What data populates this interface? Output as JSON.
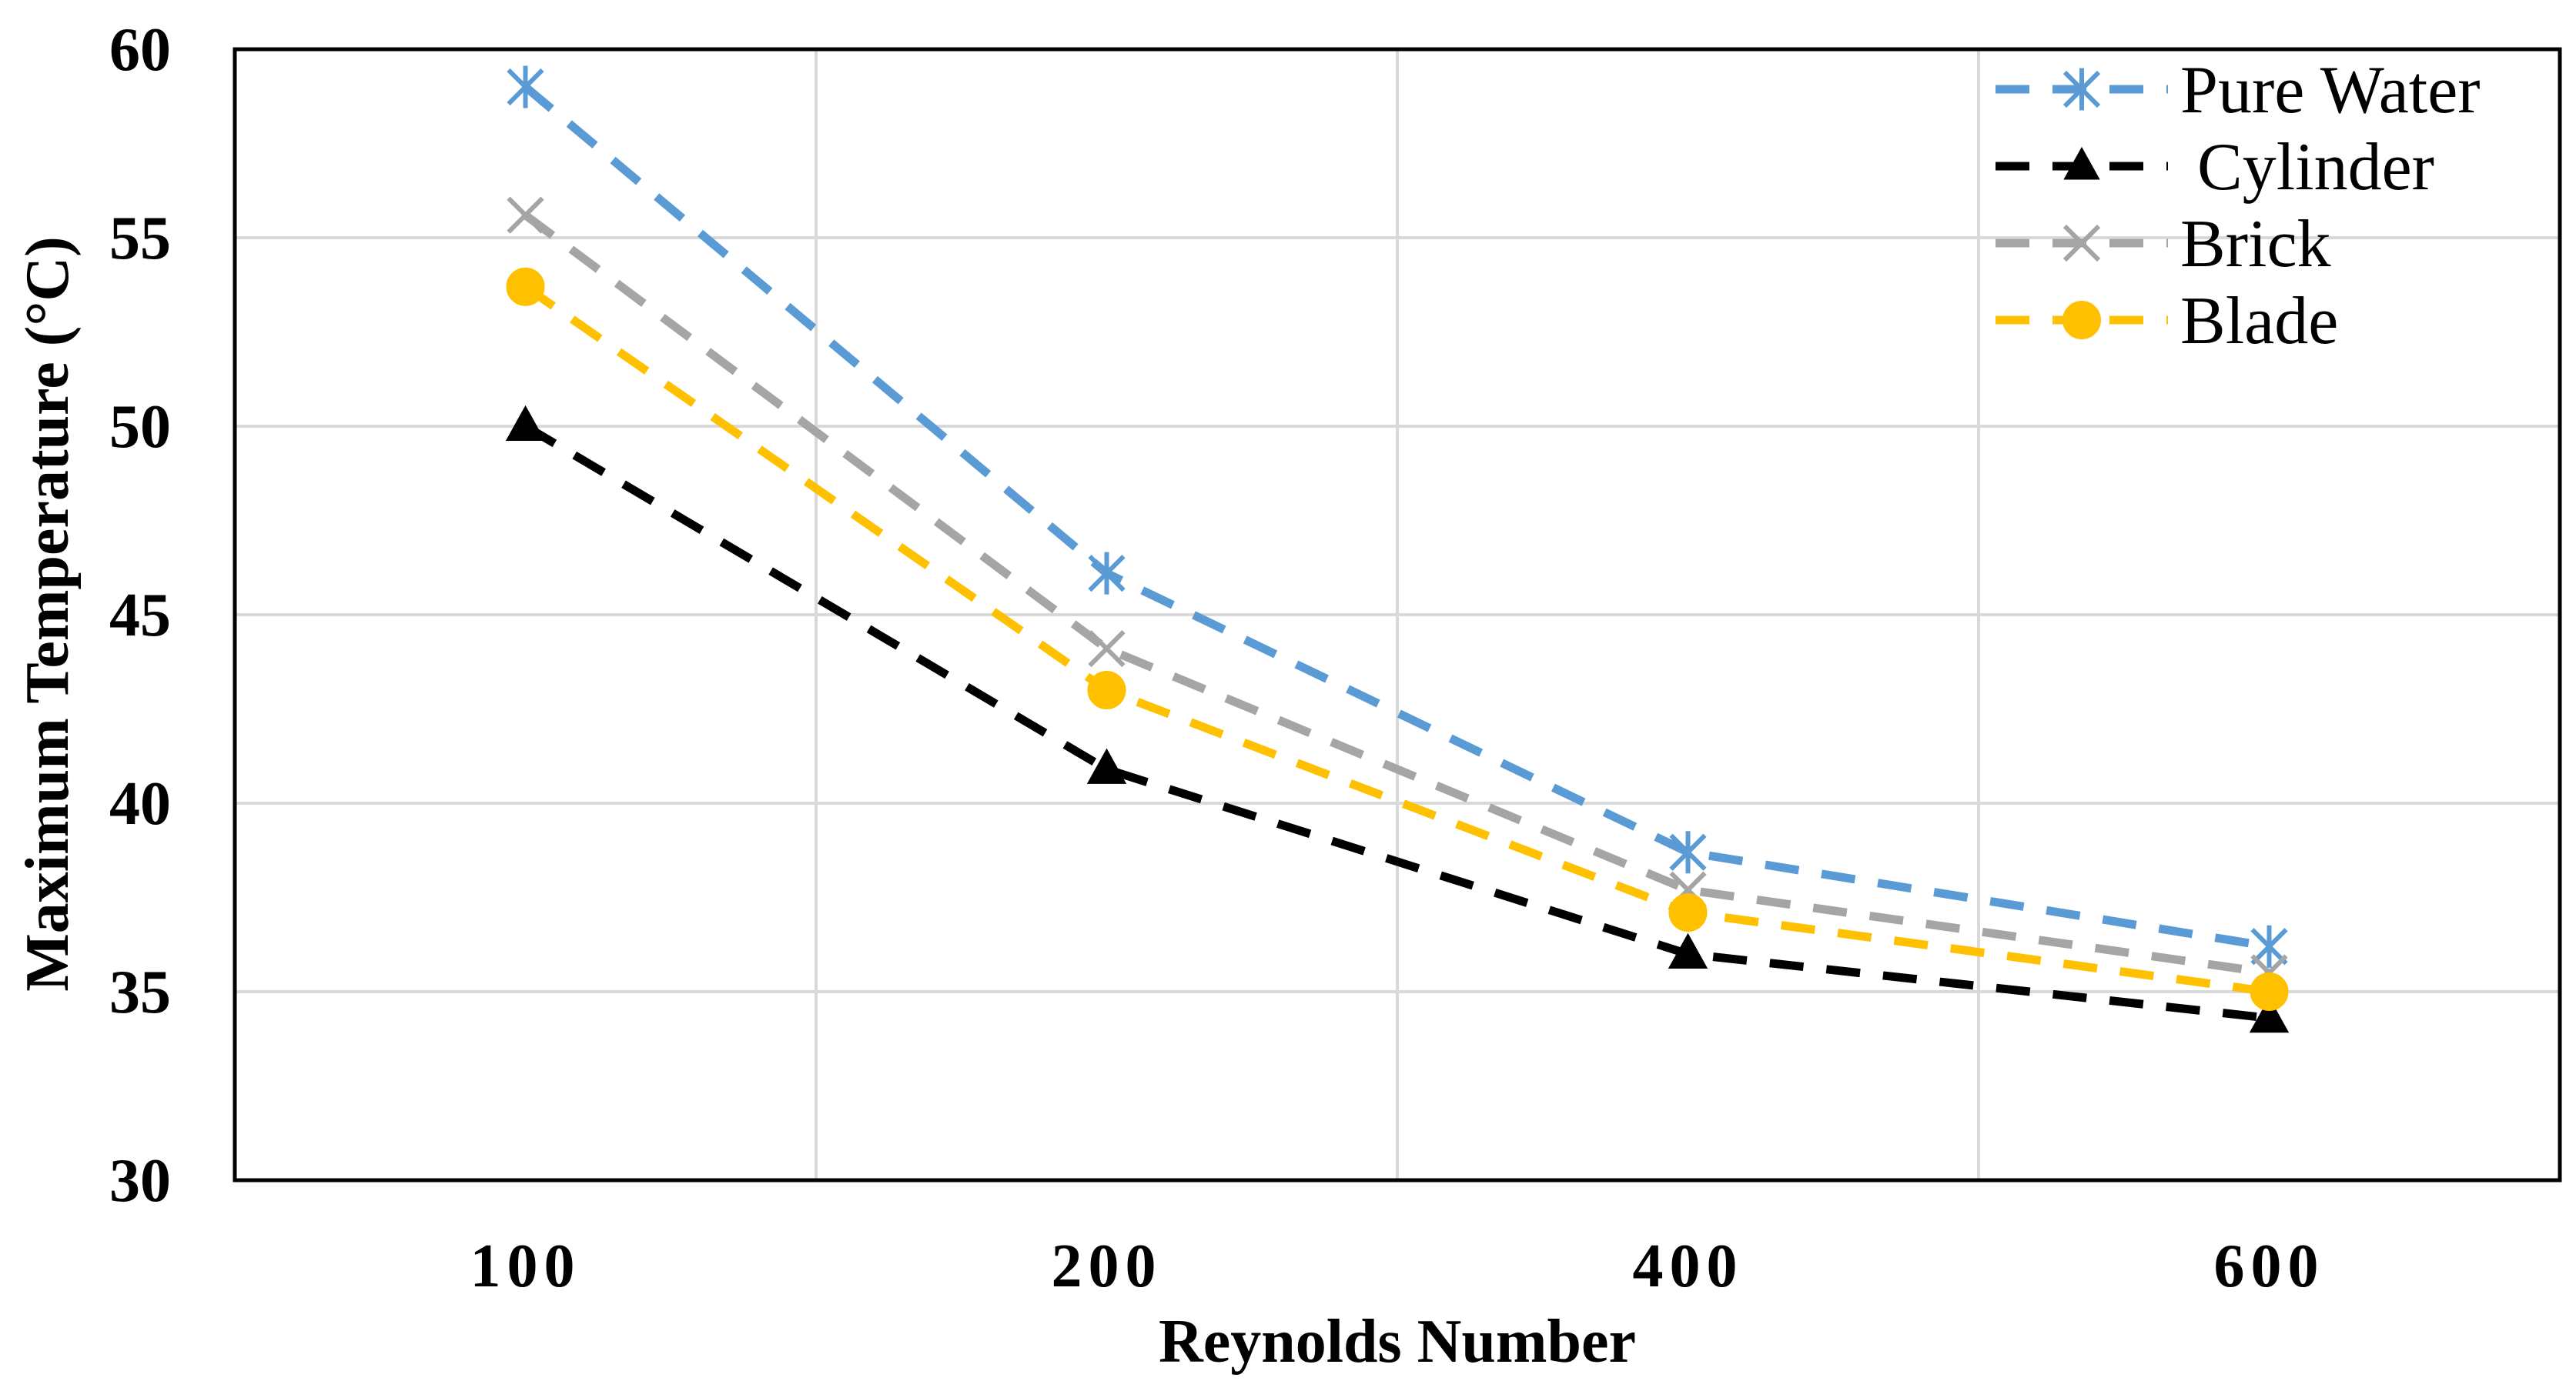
{
  "chart_data": {
    "type": "line",
    "title": "",
    "xlabel": "Reynolds Number",
    "ylabel": "Maximum Temperature (°C)",
    "categories": [
      "100",
      "200",
      "400",
      "600"
    ],
    "ylim": [
      30,
      60
    ],
    "yticks": [
      "30",
      "35",
      "40",
      "45",
      "50",
      "55",
      "60"
    ],
    "grid": true,
    "legend_position": "top-right",
    "series": [
      {
        "name": "Pure Water",
        "color": "#5B9BD5",
        "marker": "asterisk",
        "values": [
          59.0,
          46.1,
          38.7,
          36.2
        ]
      },
      {
        "name": " Cylinder",
        "color": "#000000",
        "marker": "triangle",
        "values": [
          50.0,
          40.9,
          36.0,
          34.3
        ]
      },
      {
        "name": "Brick",
        "color": "#A5A5A5",
        "marker": "x",
        "values": [
          55.6,
          44.1,
          37.7,
          35.5
        ]
      },
      {
        "name": "Blade",
        "color": "#FFC000",
        "marker": "circle",
        "values": [
          53.7,
          43.0,
          37.1,
          35.0
        ]
      }
    ]
  }
}
